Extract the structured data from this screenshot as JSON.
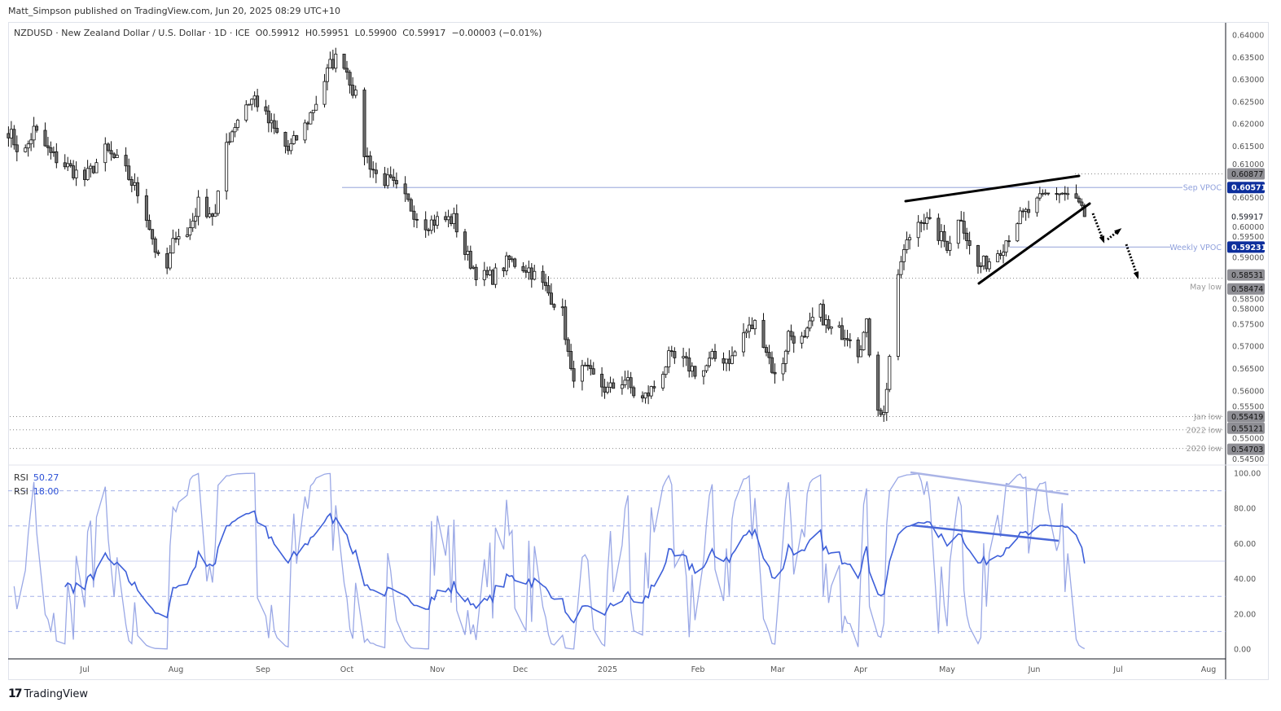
{
  "publisher_line": "Matt_Simpson published on TradingView.com, Jun 20, 2025 08:29 UTC+10",
  "legend": {
    "symbol": "NZDUSD · New Zealand Dollar / U.S. Dollar · 1D · ICE",
    "open": "O0.59912",
    "high": "H0.59951",
    "low": "L0.59900",
    "close": "C0.59917",
    "change": "−0.00003 (−0.01%)"
  },
  "rsi_legend": [
    {
      "label": "RSI",
      "value": "50.27"
    },
    {
      "label": "RSI",
      "value": "18.00"
    }
  ],
  "logo_text": "TradingView",
  "colors": {
    "accent_blue": "#0d2f9c",
    "vpoc_line": "#a9b5e0",
    "rsi_slow": "#3d5fd9",
    "rsi_fast": "#9aa8e6",
    "tag_gray": "#8e8e94"
  },
  "chart_data": {
    "type": "candlestick",
    "ylim": [
      0.545,
      0.64
    ],
    "yticks": [
      "0.64000",
      "0.63500",
      "0.63000",
      "0.62500",
      "0.62000",
      "0.61500",
      "0.61000",
      "0.60500",
      "0.60000",
      "0.59500",
      "0.59000",
      "0.58500",
      "0.58000",
      "0.57500",
      "0.57000",
      "0.56500",
      "0.56000",
      "0.55500",
      "0.55000",
      "0.54500"
    ],
    "xticks": [
      "Jul",
      "Aug",
      "Sep",
      "Oct",
      "Nov",
      "Dec",
      "2025",
      "Feb",
      "Mar",
      "Apr",
      "May",
      "Jun",
      "Jul",
      "Aug"
    ],
    "close_waypoints": [
      [
        "2024-06-04",
        0.6186
      ],
      [
        "2024-06-09",
        0.6122
      ],
      [
        "2024-06-13",
        0.6186
      ],
      [
        "2024-06-19",
        0.6131
      ],
      [
        "2024-07-01",
        0.6076
      ],
      [
        "2024-07-08",
        0.614
      ],
      [
        "2024-07-14",
        0.6103
      ],
      [
        "2024-07-21",
        0.6021
      ],
      [
        "2024-07-26",
        0.5893
      ],
      [
        "2024-07-29",
        0.5874
      ],
      [
        "2024-08-01",
        0.5957
      ],
      [
        "2024-08-05",
        0.5948
      ],
      [
        "2024-08-09",
        0.6021
      ],
      [
        "2024-08-15",
        0.5993
      ],
      [
        "2024-08-19",
        0.6158
      ],
      [
        "2024-08-25",
        0.6241
      ],
      [
        "2024-08-29",
        0.6259
      ],
      [
        "2024-09-03",
        0.6204
      ],
      [
        "2024-09-10",
        0.614
      ],
      [
        "2024-09-16",
        0.6195
      ],
      [
        "2024-09-20",
        0.625
      ],
      [
        "2024-09-25",
        0.6332
      ],
      [
        "2024-09-29",
        0.636
      ],
      [
        "2024-10-04",
        0.6259
      ],
      [
        "2024-10-06",
        0.6149
      ],
      [
        "2024-10-11",
        0.6085
      ],
      [
        "2024-10-16",
        0.6067
      ],
      [
        "2024-10-22",
        0.6021
      ],
      [
        "2024-10-27",
        0.5975
      ],
      [
        "2024-11-02",
        0.5985
      ],
      [
        "2024-11-07",
        0.5985
      ],
      [
        "2024-11-11",
        0.5911
      ],
      [
        "2024-11-16",
        0.5856
      ],
      [
        "2024-11-21",
        0.5856
      ],
      [
        "2024-11-27",
        0.5893
      ],
      [
        "2024-12-04",
        0.5874
      ],
      [
        "2024-12-10",
        0.5829
      ],
      [
        "2024-12-16",
        0.5774
      ],
      [
        "2024-12-19",
        0.5636
      ],
      [
        "2024-12-24",
        0.5645
      ],
      [
        "2025-01-01",
        0.56
      ],
      [
        "2025-01-07",
        0.5627
      ],
      [
        "2025-01-12",
        0.5572
      ],
      [
        "2025-01-17",
        0.5609
      ],
      [
        "2025-01-22",
        0.5673
      ],
      [
        "2025-01-27",
        0.5664
      ],
      [
        "2025-02-02",
        0.5636
      ],
      [
        "2025-02-06",
        0.5673
      ],
      [
        "2025-02-13",
        0.5673
      ],
      [
        "2025-02-17",
        0.5728
      ],
      [
        "2025-02-22",
        0.5755
      ],
      [
        "2025-02-26",
        0.5673
      ],
      [
        "2025-03-01",
        0.5609
      ],
      [
        "2025-03-05",
        0.5728
      ],
      [
        "2025-03-11",
        0.571
      ],
      [
        "2025-03-16",
        0.5792
      ],
      [
        "2025-03-20",
        0.5737
      ],
      [
        "2025-03-28",
        0.5728
      ],
      [
        "2025-03-31",
        0.5691
      ],
      [
        "2025-04-03",
        0.5746
      ],
      [
        "2025-04-06",
        0.5581
      ],
      [
        "2025-04-09",
        0.5545
      ],
      [
        "2025-04-12",
        0.5746
      ],
      [
        "2025-04-15",
        0.5893
      ],
      [
        "2025-04-18",
        0.5948
      ],
      [
        "2025-04-22",
        0.5993
      ],
      [
        "2025-04-27",
        0.5957
      ],
      [
        "2025-05-01",
        0.5929
      ],
      [
        "2025-05-06",
        0.5993
      ],
      [
        "2025-05-11",
        0.5874
      ],
      [
        "2025-05-16",
        0.5893
      ],
      [
        "2025-05-21",
        0.5929
      ],
      [
        "2025-05-26",
        0.5985
      ],
      [
        "2025-05-30",
        0.6003
      ],
      [
        "2025-06-05",
        0.6039
      ],
      [
        "2025-06-09",
        0.6048
      ],
      [
        "2025-06-14",
        0.6039
      ],
      [
        "2025-06-18",
        0.6012
      ],
      [
        "2025-06-19",
        0.59917
      ]
    ],
    "levels": [
      {
        "name": "Sep VPOC",
        "price": 0.60571,
        "style": "solid-blue"
      },
      {
        "name": "Weekly VPOC",
        "price": 0.59231,
        "style": "solid-blue"
      },
      {
        "name": "",
        "price": 0.60877,
        "style": "dotted-gray"
      },
      {
        "name": "May low",
        "price": 0.58531,
        "style": "dotted-gray"
      },
      {
        "name": "",
        "price": 0.58474,
        "style": "gray-tag"
      },
      {
        "name": "Jan low",
        "price": 0.55419,
        "style": "dotted-gray"
      },
      {
        "name": "2022 low",
        "price": 0.55121,
        "style": "dotted-gray"
      },
      {
        "name": "2020 low",
        "price": 0.54703,
        "style": "dotted-gray"
      }
    ],
    "price_tags": [
      "0.60877",
      "0.60571",
      "0.59917",
      "0.59231",
      "0.58531",
      "0.58474",
      "0.55419",
      "0.55121",
      "0.54703"
    ],
    "rsi": {
      "ylim": [
        0,
        100
      ],
      "yticks": [
        "100.00",
        "80.00",
        "60.00",
        "40.00",
        "20.00",
        "0.00"
      ],
      "levels": [
        90,
        70,
        50,
        30,
        10
      ],
      "last_values": [
        50.27,
        18.0
      ]
    }
  }
}
